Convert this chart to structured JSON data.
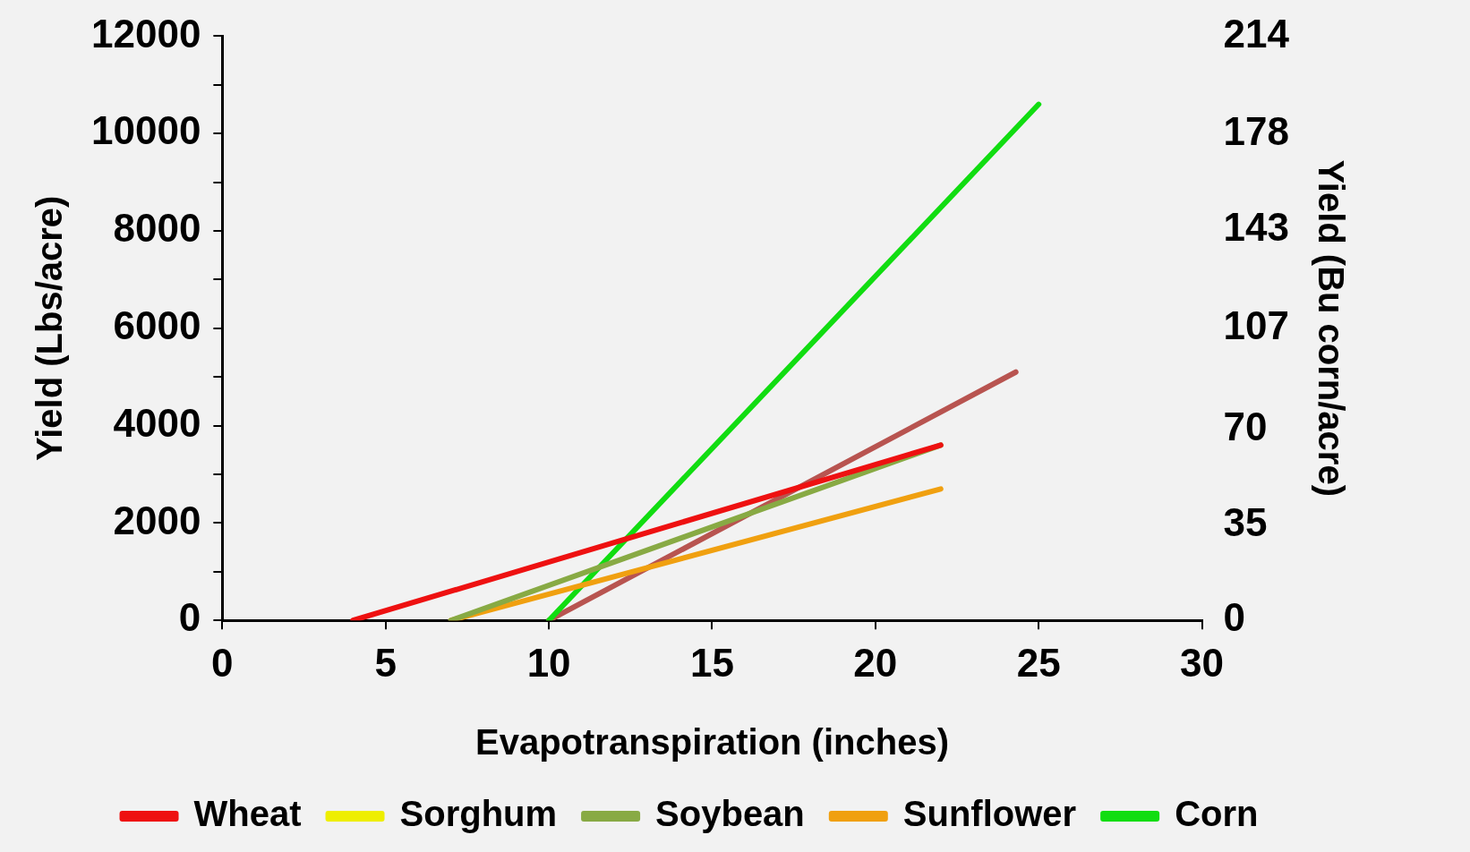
{
  "chart_data": {
    "type": "line",
    "xlabel": "Evapotranspiration (inches)",
    "ylabel": "Yield (Lbs/acre)",
    "y2label": "Yield (Bu corn/acre)",
    "xlim": [
      0,
      30
    ],
    "xticks": [
      0,
      5,
      10,
      15,
      20,
      25,
      30
    ],
    "ylim": [
      0,
      12000
    ],
    "yticks": [
      0,
      {
        "value": 1000,
        "label": null
      },
      2000,
      {
        "value": 3000,
        "label": null
      },
      4000,
      {
        "value": 5000,
        "label": null
      },
      6000,
      {
        "value": 7000,
        "label": null
      },
      8000,
      {
        "value": 9000,
        "label": null
      },
      10000,
      {
        "value": 11000,
        "label": null
      },
      12000
    ],
    "y2lim": [
      0,
      214
    ],
    "y2ticks": [
      0,
      35,
      70,
      107,
      143,
      178,
      214
    ],
    "series": [
      {
        "name": "Wheat",
        "color": "#ee1111",
        "x": [
          4,
          22
        ],
        "values": [
          0,
          3600
        ]
      },
      {
        "name": "Sorghum",
        "color": "#eeee00",
        "values": [
          null,
          null
        ]
      },
      {
        "name": "Soybean",
        "color": "#88aa44",
        "x": [
          7,
          22
        ],
        "values": [
          0,
          3600
        ]
      },
      {
        "name": "Sunflower",
        "color": "#f0a010",
        "x": [
          7,
          22
        ],
        "values": [
          0,
          2700
        ]
      },
      {
        "name": "Corn",
        "color": "#11dd11",
        "x": [
          10,
          25
        ],
        "values": [
          0,
          10600
        ]
      },
      {
        "color": "#b85450",
        "x": [
          10,
          24.3
        ],
        "values": [
          0,
          5100
        ]
      }
    ],
    "grid": false,
    "legend": "bottom",
    "marker": "none",
    "line_style": "solid"
  }
}
